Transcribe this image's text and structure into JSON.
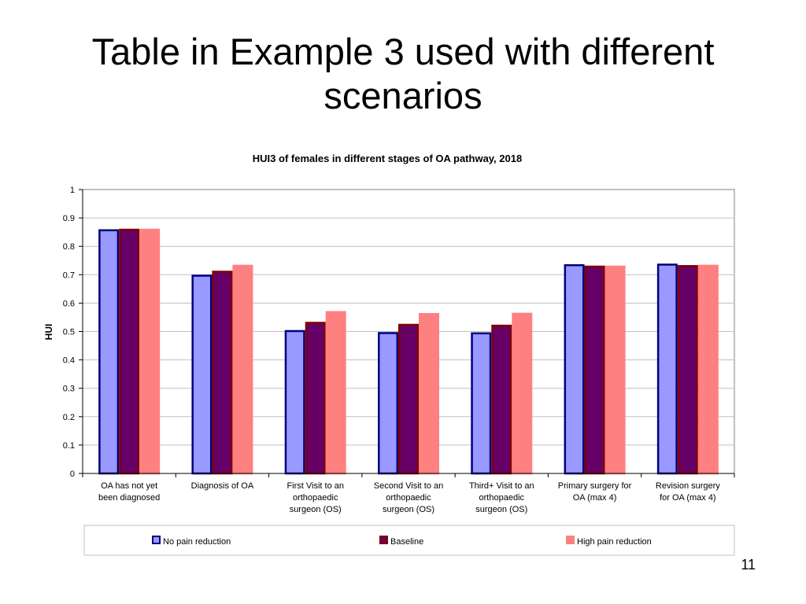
{
  "slide": {
    "title_line1": "Table in Example 3 used with  different",
    "title_line2": "scenarios",
    "page_number": "11"
  },
  "chart_data": {
    "type": "bar",
    "title": "HUI3 of females in different stages of OA pathway, 2018",
    "xlabel": "",
    "ylabel": "HUI",
    "ylim": [
      0,
      1
    ],
    "yticks": [
      "0",
      "0.1",
      "0.2",
      "0.3",
      "0.4",
      "0.5",
      "0.6",
      "0.7",
      "0.8",
      "0.9",
      "1"
    ],
    "grid": true,
    "legend_position": "bottom",
    "categories": [
      [
        "OA has not yet",
        "been diagnosed"
      ],
      [
        "Diagnosis of OA"
      ],
      [
        "First Visit to an",
        "orthopaedic",
        "surgeon (OS)"
      ],
      [
        "Second Visit to an",
        "orthopaedic",
        "surgeon (OS)"
      ],
      [
        "Third+ Visit to an",
        "orthopaedic",
        "surgeon (OS)"
      ],
      [
        "Primary surgery for",
        "OA (max 4)"
      ],
      [
        "Revision surgery",
        "for OA (max 4)"
      ]
    ],
    "series": [
      {
        "name": "No pain reduction",
        "fill": "#9999ff",
        "stroke": "#000080",
        "values": [
          0.86,
          0.7,
          0.505,
          0.498,
          0.497,
          0.737,
          0.739
        ]
      },
      {
        "name": "Baseline",
        "fill": "#660066",
        "stroke": "#800000",
        "values": [
          0.862,
          0.714,
          0.534,
          0.527,
          0.524,
          0.732,
          0.734
        ]
      },
      {
        "name": "High pain reduction",
        "fill": "#ff8080",
        "stroke": "#ff8080",
        "values": [
          0.862,
          0.735,
          0.572,
          0.565,
          0.566,
          0.732,
          0.735
        ]
      }
    ]
  }
}
